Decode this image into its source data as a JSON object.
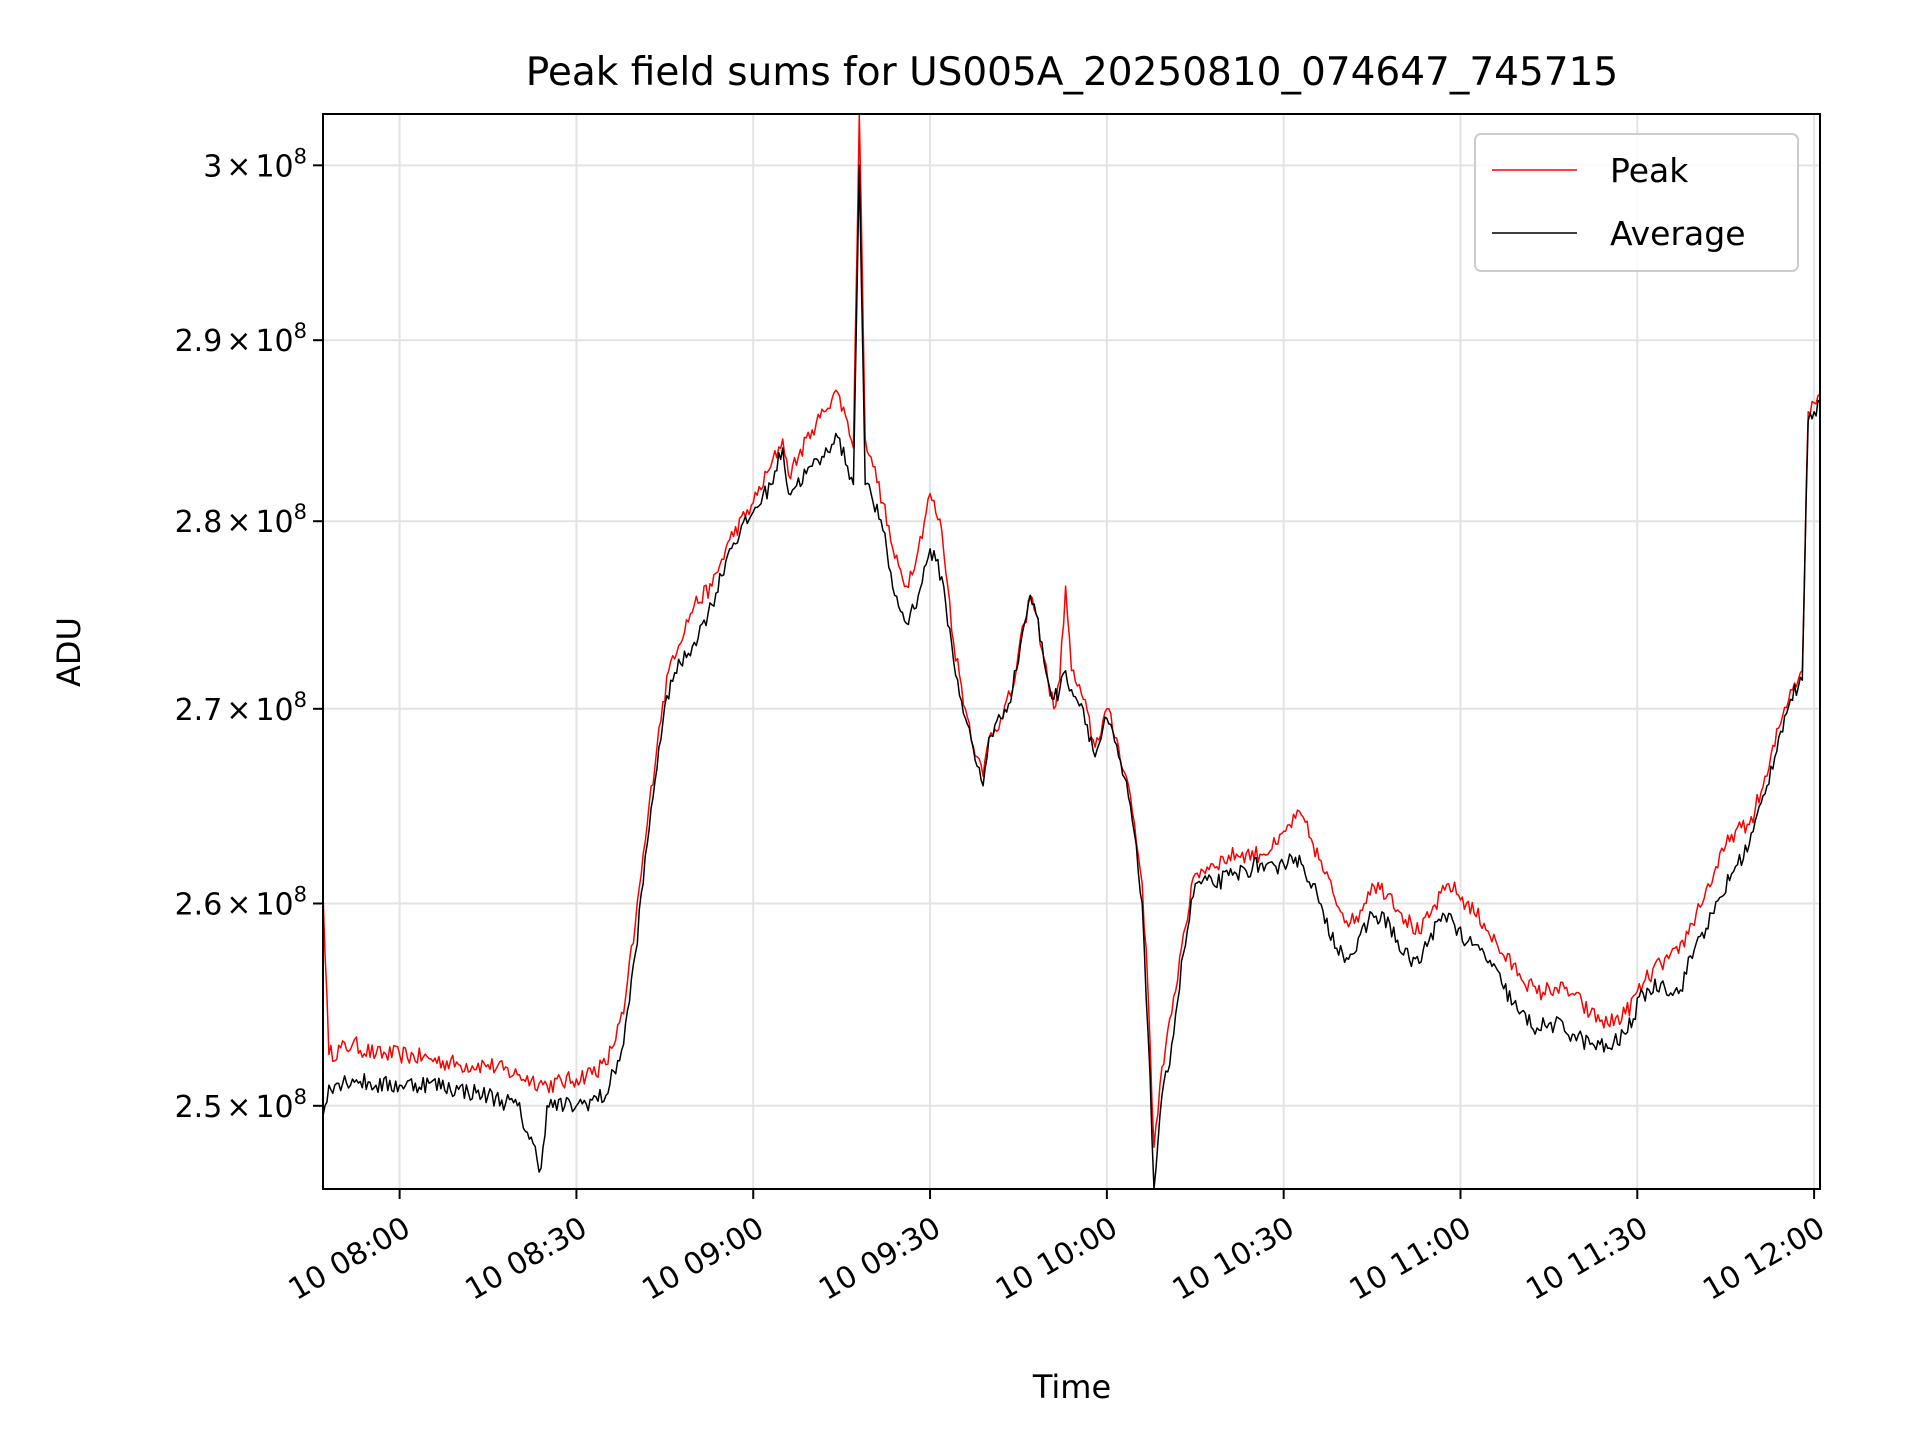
{
  "chart_data": {
    "type": "line",
    "title": "Peak field sums for US005A_20250810_074647_745715",
    "xlabel": "Time",
    "ylabel": "ADU",
    "x_unit": "time of day (2025-08-10)",
    "xlim": [
      "07:47",
      "12:01"
    ],
    "ylim": [
      246000000,
      303000000
    ],
    "y_scale": "log",
    "grid": true,
    "legend": "top-right",
    "x_ticks": [
      "10 08:00",
      "10 08:30",
      "10 09:00",
      "10 09:30",
      "10 10:00",
      "10 10:30",
      "10 11:00",
      "10 11:30",
      "10 12:00"
    ],
    "y_ticks": [
      {
        "value": 250000000,
        "mantissa": "2.5",
        "exponent": "8"
      },
      {
        "value": 260000000,
        "mantissa": "2.6",
        "exponent": "8"
      },
      {
        "value": 270000000,
        "mantissa": "2.7",
        "exponent": "8"
      },
      {
        "value": 280000000,
        "mantissa": "2.8",
        "exponent": "8"
      },
      {
        "value": 290000000,
        "mantissa": "2.9",
        "exponent": "8"
      },
      {
        "value": 300000000,
        "mantissa": "3",
        "exponent": "8"
      }
    ],
    "series": [
      {
        "name": "Peak",
        "color": "#ff0000",
        "points": [
          [
            "07:47",
            260500000
          ],
          [
            "07:48",
            252500000
          ],
          [
            "07:52",
            253000000
          ],
          [
            "07:56",
            252500000
          ],
          [
            "08:00",
            252500000
          ],
          [
            "08:05",
            252300000
          ],
          [
            "08:10",
            252000000
          ],
          [
            "08:15",
            252000000
          ],
          [
            "08:20",
            251500000
          ],
          [
            "08:25",
            251000000
          ],
          [
            "08:30",
            251300000
          ],
          [
            "08:35",
            252000000
          ],
          [
            "08:38",
            254500000
          ],
          [
            "08:40",
            259000000
          ],
          [
            "08:42",
            264000000
          ],
          [
            "08:44",
            269000000
          ],
          [
            "08:46",
            272500000
          ],
          [
            "08:50",
            275500000
          ],
          [
            "08:53",
            276500000
          ],
          [
            "08:56",
            279000000
          ],
          [
            "09:00",
            281000000
          ],
          [
            "09:03",
            283000000
          ],
          [
            "09:05",
            284500000
          ],
          [
            "09:06",
            282500000
          ],
          [
            "09:10",
            285000000
          ],
          [
            "09:12",
            286000000
          ],
          [
            "09:14",
            287200000
          ],
          [
            "09:16",
            285500000
          ],
          [
            "09:17",
            284000000
          ],
          [
            "09:18",
            303000000
          ],
          [
            "09:19",
            284500000
          ],
          [
            "09:20",
            283500000
          ],
          [
            "09:22",
            281000000
          ],
          [
            "09:24",
            278000000
          ],
          [
            "09:26",
            276500000
          ],
          [
            "09:28",
            278500000
          ],
          [
            "09:30",
            281500000
          ],
          [
            "09:32",
            279500000
          ],
          [
            "09:34",
            273500000
          ],
          [
            "09:36",
            270000000
          ],
          [
            "09:38",
            267500000
          ],
          [
            "09:39",
            266500000
          ],
          [
            "09:40",
            268500000
          ],
          [
            "09:42",
            269500000
          ],
          [
            "09:44",
            271000000
          ],
          [
            "09:46",
            274500000
          ],
          [
            "09:47",
            276000000
          ],
          [
            "09:48",
            275000000
          ],
          [
            "09:50",
            271500000
          ],
          [
            "09:51",
            270000000
          ],
          [
            "09:52",
            271500000
          ],
          [
            "09:53",
            276500000
          ],
          [
            "09:54",
            272000000
          ],
          [
            "09:56",
            270500000
          ],
          [
            "09:58",
            268000000
          ],
          [
            "10:00",
            270000000
          ],
          [
            "10:02",
            268000000
          ],
          [
            "10:04",
            265500000
          ],
          [
            "10:06",
            261000000
          ],
          [
            "10:07",
            255500000
          ],
          [
            "10:08",
            248000000
          ],
          [
            "10:09",
            251000000
          ],
          [
            "10:11",
            254500000
          ],
          [
            "10:13",
            258500000
          ],
          [
            "10:15",
            261500000
          ],
          [
            "10:18",
            262000000
          ],
          [
            "10:22",
            262500000
          ],
          [
            "10:26",
            262500000
          ],
          [
            "10:29",
            263000000
          ],
          [
            "10:31",
            264000000
          ],
          [
            "10:33",
            264500000
          ],
          [
            "10:35",
            263000000
          ],
          [
            "10:37",
            261500000
          ],
          [
            "10:40",
            259500000
          ],
          [
            "10:42",
            259000000
          ],
          [
            "10:45",
            261000000
          ],
          [
            "10:48",
            260500000
          ],
          [
            "10:50",
            259500000
          ],
          [
            "10:53",
            258500000
          ],
          [
            "10:55",
            259500000
          ],
          [
            "10:58",
            261000000
          ],
          [
            "11:01",
            260000000
          ],
          [
            "11:04",
            259000000
          ],
          [
            "11:07",
            257500000
          ],
          [
            "11:10",
            256500000
          ],
          [
            "11:13",
            255500000
          ],
          [
            "11:16",
            255800000
          ],
          [
            "11:19",
            255500000
          ],
          [
            "11:22",
            254500000
          ],
          [
            "11:25",
            254000000
          ],
          [
            "11:28",
            254500000
          ],
          [
            "11:31",
            256000000
          ],
          [
            "11:34",
            257000000
          ],
          [
            "11:37",
            257500000
          ],
          [
            "11:40",
            259500000
          ],
          [
            "11:43",
            261500000
          ],
          [
            "11:46",
            263500000
          ],
          [
            "11:49",
            264000000
          ],
          [
            "11:52",
            266500000
          ],
          [
            "11:54",
            269000000
          ],
          [
            "11:56",
            271000000
          ],
          [
            "11:58",
            272000000
          ],
          [
            "11:59",
            286000000
          ],
          [
            "12:00",
            286500000
          ],
          [
            "12:01",
            287000000
          ]
        ]
      },
      {
        "name": "Average",
        "color": "#000000",
        "points": [
          [
            "07:47",
            249500000
          ],
          [
            "07:48",
            251000000
          ],
          [
            "07:52",
            251300000
          ],
          [
            "07:56",
            251000000
          ],
          [
            "08:00",
            251000000
          ],
          [
            "08:05",
            251100000
          ],
          [
            "08:10",
            250800000
          ],
          [
            "08:15",
            250500000
          ],
          [
            "08:20",
            250000000
          ],
          [
            "08:24",
            247000000
          ],
          [
            "08:25",
            250000000
          ],
          [
            "08:30",
            250000000
          ],
          [
            "08:35",
            250500000
          ],
          [
            "08:38",
            253000000
          ],
          [
            "08:40",
            257500000
          ],
          [
            "08:42",
            263000000
          ],
          [
            "08:44",
            268000000
          ],
          [
            "08:46",
            271500000
          ],
          [
            "08:50",
            273500000
          ],
          [
            "08:53",
            275500000
          ],
          [
            "08:56",
            278500000
          ],
          [
            "09:00",
            280500000
          ],
          [
            "09:03",
            282000000
          ],
          [
            "09:05",
            284000000
          ],
          [
            "09:06",
            281500000
          ],
          [
            "09:10",
            283000000
          ],
          [
            "09:12",
            283500000
          ],
          [
            "09:14",
            284800000
          ],
          [
            "09:16",
            283000000
          ],
          [
            "09:17",
            282000000
          ],
          [
            "09:18",
            300000000
          ],
          [
            "09:19",
            282000000
          ],
          [
            "09:20",
            281500000
          ],
          [
            "09:22",
            279500000
          ],
          [
            "09:24",
            276000000
          ],
          [
            "09:26",
            274500000
          ],
          [
            "09:28",
            276000000
          ],
          [
            "09:30",
            278500000
          ],
          [
            "09:32",
            277000000
          ],
          [
            "09:34",
            272500000
          ],
          [
            "09:36",
            269500000
          ],
          [
            "09:38",
            267000000
          ],
          [
            "09:39",
            266000000
          ],
          [
            "09:40",
            268500000
          ],
          [
            "09:42",
            269500000
          ],
          [
            "09:44",
            271000000
          ],
          [
            "09:46",
            274500000
          ],
          [
            "09:47",
            276000000
          ],
          [
            "09:48",
            275000000
          ],
          [
            "09:50",
            271500000
          ],
          [
            "09:51",
            270500000
          ],
          [
            "09:52",
            271000000
          ],
          [
            "09:53",
            272000000
          ],
          [
            "09:54",
            271000000
          ],
          [
            "09:56",
            270000000
          ],
          [
            "09:58",
            267500000
          ],
          [
            "10:00",
            269500000
          ],
          [
            "10:02",
            267500000
          ],
          [
            "10:04",
            265000000
          ],
          [
            "10:06",
            260000000
          ],
          [
            "10:07",
            253500000
          ],
          [
            "10:08",
            246000000
          ],
          [
            "10:09",
            249500000
          ],
          [
            "10:11",
            253000000
          ],
          [
            "10:13",
            257500000
          ],
          [
            "10:15",
            261000000
          ],
          [
            "10:18",
            261000000
          ],
          [
            "10:22",
            261500000
          ],
          [
            "10:26",
            262000000
          ],
          [
            "10:29",
            261500000
          ],
          [
            "10:31",
            262500000
          ],
          [
            "10:33",
            262000000
          ],
          [
            "10:35",
            261000000
          ],
          [
            "10:37",
            259000000
          ],
          [
            "10:40",
            257500000
          ],
          [
            "10:42",
            257500000
          ],
          [
            "10:45",
            259500000
          ],
          [
            "10:48",
            259000000
          ],
          [
            "10:50",
            257500000
          ],
          [
            "10:53",
            257000000
          ],
          [
            "10:55",
            258500000
          ],
          [
            "10:58",
            259500000
          ],
          [
            "11:01",
            258000000
          ],
          [
            "11:04",
            257500000
          ],
          [
            "11:07",
            256000000
          ],
          [
            "11:10",
            254500000
          ],
          [
            "11:13",
            253800000
          ],
          [
            "11:16",
            254000000
          ],
          [
            "11:19",
            253500000
          ],
          [
            "11:22",
            253000000
          ],
          [
            "11:25",
            252800000
          ],
          [
            "11:28",
            253500000
          ],
          [
            "11:31",
            255500000
          ],
          [
            "11:34",
            256000000
          ],
          [
            "11:37",
            255500000
          ],
          [
            "11:40",
            258000000
          ],
          [
            "11:43",
            259500000
          ],
          [
            "11:46",
            261500000
          ],
          [
            "11:49",
            263000000
          ],
          [
            "11:52",
            266000000
          ],
          [
            "11:54",
            268500000
          ],
          [
            "11:56",
            270500000
          ],
          [
            "11:58",
            271500000
          ],
          [
            "11:59",
            285500000
          ],
          [
            "12:00",
            286000000
          ],
          [
            "12:01",
            286500000
          ]
        ]
      }
    ]
  }
}
